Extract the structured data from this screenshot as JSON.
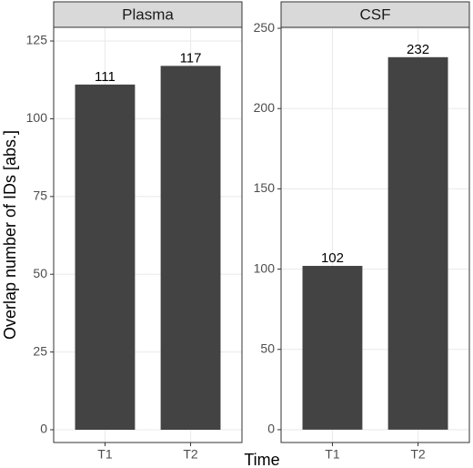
{
  "y_label": "Overlap number of IDs [abs.]",
  "x_label": "Time",
  "chart_data": [
    {
      "type": "bar",
      "title": "Plasma",
      "categories": [
        "T1",
        "T2"
      ],
      "values": [
        111,
        117
      ],
      "color": "#434343",
      "ylim": [
        -4.1,
        129.4
      ],
      "yticks": [
        0,
        25,
        50,
        75,
        100,
        125
      ],
      "grid": true
    },
    {
      "type": "bar",
      "title": "CSF",
      "categories": [
        "T1",
        "T2"
      ],
      "values": [
        102,
        232
      ],
      "color": "#434343",
      "ylim": [
        -8,
        250.6
      ],
      "yticks": [
        0,
        50,
        100,
        150,
        200,
        250
      ],
      "grid": true
    }
  ]
}
